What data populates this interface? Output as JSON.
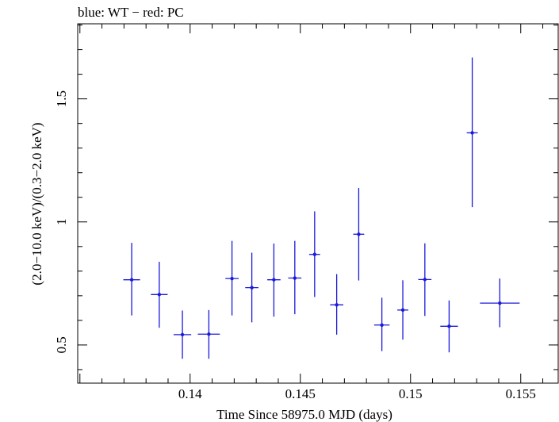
{
  "chart_data": {
    "type": "scatter",
    "title": "blue: WT − red: PC",
    "xlabel": "Time Since 58975.0 MJD (days)",
    "ylabel": "(2.0−10.0 keV)/(0.3−2.0 keV)",
    "xlim": [
      0.1349,
      0.1567
    ],
    "ylim": [
      0.345,
      1.805
    ],
    "x_ticks": [
      {
        "value": 0.14,
        "label": "0.14"
      },
      {
        "value": 0.145,
        "label": "0.145"
      },
      {
        "value": 0.15,
        "label": "0.15"
      },
      {
        "value": 0.155,
        "label": "0.155"
      }
    ],
    "y_ticks": [
      {
        "value": 0.5,
        "label": "0.5"
      },
      {
        "value": 1,
        "label": "1"
      },
      {
        "value": 1.5,
        "label": "1.5"
      }
    ],
    "grid": false,
    "series": [
      {
        "color": "#1a1adb",
        "points": [
          {
            "x": 0.13735,
            "xerr": 0.00038,
            "y": 0.765,
            "ylo": 0.62,
            "yhi": 0.915
          },
          {
            "x": 0.1386,
            "xerr": 0.00038,
            "y": 0.705,
            "ylo": 0.57,
            "yhi": 0.838
          },
          {
            "x": 0.13965,
            "xerr": 0.0004,
            "y": 0.542,
            "ylo": 0.444,
            "yhi": 0.64
          },
          {
            "x": 0.14085,
            "xerr": 0.0005,
            "y": 0.544,
            "ylo": 0.444,
            "yhi": 0.642
          },
          {
            "x": 0.1419,
            "xerr": 0.0003,
            "y": 0.77,
            "ylo": 0.62,
            "yhi": 0.923
          },
          {
            "x": 0.1428,
            "xerr": 0.0003,
            "y": 0.733,
            "ylo": 0.592,
            "yhi": 0.875
          },
          {
            "x": 0.1438,
            "xerr": 0.0003,
            "y": 0.765,
            "ylo": 0.615,
            "yhi": 0.912
          },
          {
            "x": 0.14475,
            "xerr": 0.0003,
            "y": 0.772,
            "ylo": 0.625,
            "yhi": 0.923
          },
          {
            "x": 0.14565,
            "xerr": 0.00025,
            "y": 0.868,
            "ylo": 0.695,
            "yhi": 1.043
          },
          {
            "x": 0.14665,
            "xerr": 0.0003,
            "y": 0.663,
            "ylo": 0.542,
            "yhi": 0.788
          },
          {
            "x": 0.14765,
            "xerr": 0.00025,
            "y": 0.95,
            "ylo": 0.762,
            "yhi": 1.138
          },
          {
            "x": 0.1487,
            "xerr": 0.00035,
            "y": 0.581,
            "ylo": 0.475,
            "yhi": 0.692
          },
          {
            "x": 0.14965,
            "xerr": 0.00025,
            "y": 0.642,
            "ylo": 0.522,
            "yhi": 0.763
          },
          {
            "x": 0.15065,
            "xerr": 0.0003,
            "y": 0.766,
            "ylo": 0.618,
            "yhi": 0.913
          },
          {
            "x": 0.15175,
            "xerr": 0.0004,
            "y": 0.576,
            "ylo": 0.47,
            "yhi": 0.681
          },
          {
            "x": 0.1528,
            "xerr": 0.00025,
            "y": 1.362,
            "ylo": 1.06,
            "yhi": 1.668
          },
          {
            "x": 0.15405,
            "xerr": 0.0009,
            "y": 0.67,
            "ylo": 0.572,
            "yhi": 0.77
          }
        ]
      }
    ]
  }
}
